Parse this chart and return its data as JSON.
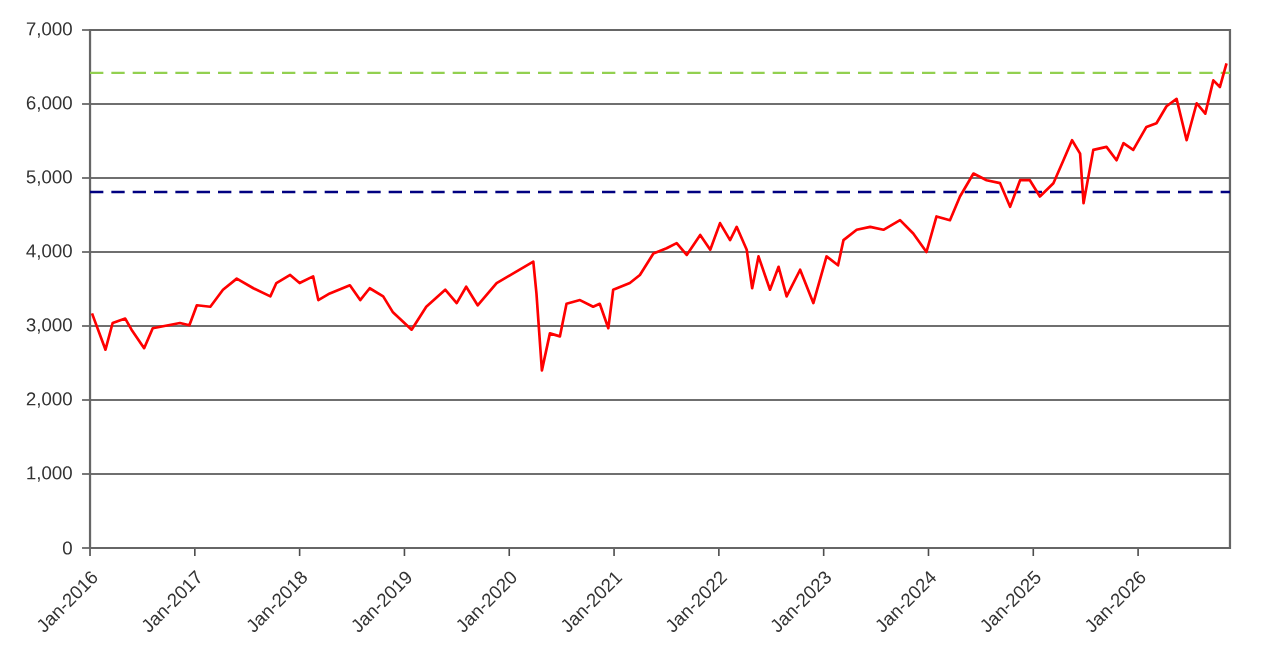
{
  "chart_data": {
    "type": "line",
    "color": "#ff0000",
    "line_style": "solid",
    "marker": "none",
    "grid": "y",
    "xlim": [
      "2016-01-01",
      "2026-11-17"
    ],
    "xticks": [
      {
        "value": "2016-01-01",
        "label": "Jan-2016"
      },
      {
        "value": "2017-01-01",
        "label": "Jan-2017"
      },
      {
        "value": "2018-01-01",
        "label": "Jan-2018"
      },
      {
        "value": "2019-01-01",
        "label": "Jan-2019"
      },
      {
        "value": "2020-01-01",
        "label": "Jan-2020"
      },
      {
        "value": "2021-01-01",
        "label": "Jan-2021"
      },
      {
        "value": "2022-01-01",
        "label": "Jan-2022"
      },
      {
        "value": "2023-01-01",
        "label": "Jan-2023"
      },
      {
        "value": "2024-01-01",
        "label": "Jan-2024"
      },
      {
        "value": "2025-01-01",
        "label": "Jan-2025"
      },
      {
        "value": "2026-01-01",
        "label": "Jan-2026"
      }
    ],
    "ylim": [
      0,
      7000
    ],
    "yticks": [
      0,
      {
        "value": 1000,
        "label": "1,000"
      },
      {
        "value": 2000,
        "label": "2,000"
      },
      {
        "value": 3000,
        "label": "3,000"
      },
      {
        "value": 4000,
        "label": "4,000"
      },
      {
        "value": 5000,
        "label": "5,000"
      },
      {
        "value": 6000,
        "label": "6,000"
      },
      {
        "value": 7000,
        "label": "7,000"
      }
    ],
    "ref_lines": [
      {
        "axis": "y",
        "value": 6420,
        "color": "#92d050",
        "line_style": "dashed"
      },
      {
        "axis": "y",
        "value": 4810,
        "color": "#000080",
        "line_style": "dashed"
      }
    ],
    "x": [
      "2016-01-08",
      "2016-02-24",
      "2016-03-20",
      "2016-05-03",
      "2016-05-25",
      "2016-07-08",
      "2016-08-07",
      "2016-11-10",
      "2016-12-13",
      "2017-01-08",
      "2017-02-24",
      "2017-04-09",
      "2017-05-27",
      "2017-07-24",
      "2017-09-21",
      "2017-10-12",
      "2017-11-29",
      "2018-01-01",
      "2018-02-17",
      "2018-03-07",
      "2018-04-16",
      "2018-06-25",
      "2018-07-31",
      "2018-09-02",
      "2018-10-19",
      "2018-11-21",
      "2019-01-26",
      "2019-03-18",
      "2019-05-23",
      "2019-07-02",
      "2019-08-04",
      "2019-09-13",
      "2019-11-18",
      "2020-01-15",
      "2020-03-25",
      "2020-04-05",
      "2020-04-24",
      "2020-05-22",
      "2020-06-26",
      "2020-07-19",
      "2020-09-04",
      "2020-10-20",
      "2020-11-12",
      "2020-12-12",
      "2020-12-29",
      "2021-02-25",
      "2021-04-01",
      "2021-05-18",
      "2021-07-03",
      "2021-08-07",
      "2021-09-11",
      "2021-10-28",
      "2021-12-02",
      "2022-01-05",
      "2022-02-09",
      "2022-03-04",
      "2022-04-08",
      "2022-04-27",
      "2022-05-19",
      "2022-06-28",
      "2022-07-28",
      "2022-08-25",
      "2022-10-11",
      "2022-11-26",
      "2023-01-11",
      "2023-02-20",
      "2023-03-11",
      "2023-04-26",
      "2023-06-12",
      "2023-07-28",
      "2023-09-24",
      "2023-11-09",
      "2023-12-25",
      "2024-01-29",
      "2024-03-16",
      "2024-04-20",
      "2024-06-06",
      "2024-07-22",
      "2024-09-07",
      "2024-10-12",
      "2024-11-16",
      "2024-12-20",
      "2025-01-24",
      "2025-03-12",
      "2025-04-16",
      "2025-05-16",
      "2025-06-13",
      "2025-06-25",
      "2025-07-29",
      "2025-09-13",
      "2025-10-18",
      "2025-11-11",
      "2025-12-15",
      "2026-01-30",
      "2026-03-06",
      "2026-04-10",
      "2026-05-15",
      "2026-06-19",
      "2026-07-24",
      "2026-08-23",
      "2026-09-20",
      "2026-10-13",
      "2026-11-05"
    ],
    "values": [
      3170,
      2680,
      3040,
      3100,
      2950,
      2700,
      2970,
      3040,
      3010,
      3280,
      3260,
      3490,
      3640,
      3510,
      3400,
      3580,
      3690,
      3580,
      3670,
      3350,
      3440,
      3550,
      3350,
      3510,
      3400,
      3190,
      2950,
      3260,
      3490,
      3310,
      3530,
      3280,
      3580,
      3710,
      3870,
      3440,
      2400,
      2900,
      2860,
      3300,
      3350,
      3260,
      3300,
      2970,
      3490,
      3580,
      3690,
      3980,
      4050,
      4120,
      3960,
      4230,
      4030,
      4390,
      4160,
      4340,
      4030,
      3510,
      3940,
      3490,
      3800,
      3400,
      3760,
      3310,
      3940,
      3820,
      4160,
      4300,
      4340,
      4300,
      4430,
      4250,
      4000,
      4480,
      4430,
      4750,
      5060,
      4970,
      4930,
      4610,
      4970,
      4970,
      4750,
      4930,
      5240,
      5510,
      5330,
      4660,
      5380,
      5420,
      5240,
      5470,
      5380,
      5690,
      5740,
      5970,
      6070,
      5510,
      6010,
      5870,
      6320,
      6230,
      6550
    ]
  }
}
